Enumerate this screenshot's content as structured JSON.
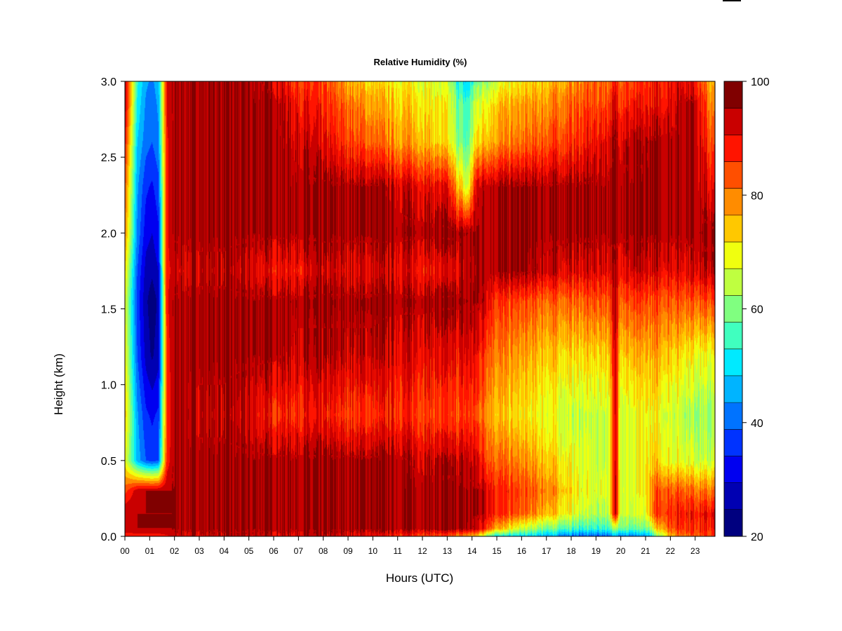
{
  "chart_data": {
    "type": "heatmap",
    "title": "Relative Humidity (%)",
    "xlabel": "Hours (UTC)",
    "ylabel": "Height (km)",
    "x_ticks": [
      "00",
      "01",
      "02",
      "03",
      "04",
      "05",
      "06",
      "07",
      "08",
      "09",
      "10",
      "11",
      "12",
      "13",
      "14",
      "15",
      "16",
      "17",
      "18",
      "19",
      "20",
      "21",
      "22",
      "23"
    ],
    "y_ticks": [
      "0.0",
      "0.5",
      "1.0",
      "1.5",
      "2.0",
      "2.5",
      "3.0"
    ],
    "xlim": [
      0,
      23.8
    ],
    "ylim": [
      0,
      3.0
    ],
    "colorbar": {
      "min": 20,
      "max": 100,
      "step": 5,
      "tick_labels": [
        "20",
        "40",
        "60",
        "80",
        "100"
      ],
      "colors": [
        "#00007f",
        "#0000b2",
        "#0000f0",
        "#0033ff",
        "#0073ff",
        "#00b4ff",
        "#00eaff",
        "#40ffbf",
        "#80ff80",
        "#bfff40",
        "#f0ff0f",
        "#ffc800",
        "#ff8c00",
        "#ff4f00",
        "#ff1400",
        "#c90000"
      ],
      "top_color": "#800000"
    },
    "x_values_hours": [
      0,
      0.5,
      0.85,
      1.1,
      1.35,
      1.7,
      2,
      3,
      4,
      5,
      6,
      7,
      8,
      9,
      10,
      11,
      12,
      13,
      13.5,
      13.8,
      14.2,
      14.6,
      15,
      16,
      17,
      18,
      18.5,
      19,
      19.5,
      19.8,
      20,
      20.5,
      21,
      21.2,
      21.5,
      22,
      22.5,
      23,
      23.5,
      23.8
    ],
    "y_values_km": [
      0.0,
      0.05,
      0.15,
      0.3,
      0.5,
      0.8,
      1.2,
      1.55,
      1.75,
      2.0,
      2.3,
      2.6,
      2.85,
      3.0
    ],
    "rh_rows": [
      [
        92,
        92,
        92,
        92,
        92,
        94,
        96,
        97,
        98,
        98,
        97,
        97,
        97,
        96,
        94,
        92,
        90,
        86,
        82,
        80,
        76,
        64,
        52,
        50,
        48,
        42,
        40,
        40,
        42,
        46,
        46,
        42,
        44,
        50,
        62,
        80,
        86,
        88,
        88,
        88
      ],
      [
        98,
        100,
        100,
        100,
        100,
        100,
        100,
        100,
        100,
        100,
        100,
        100,
        100,
        100,
        100,
        100,
        100,
        100,
        100,
        100,
        98,
        92,
        80,
        68,
        62,
        58,
        56,
        56,
        58,
        64,
        64,
        58,
        60,
        66,
        78,
        88,
        92,
        92,
        92,
        92
      ],
      [
        100,
        100,
        100,
        100,
        100,
        100,
        100,
        100,
        100,
        100,
        100,
        100,
        100,
        100,
        100,
        100,
        100,
        100,
        100,
        100,
        100,
        98,
        92,
        86,
        80,
        72,
        68,
        66,
        68,
        98,
        70,
        68,
        70,
        82,
        90,
        92,
        94,
        94,
        94,
        94
      ],
      [
        88,
        98,
        100,
        100,
        100,
        100,
        100,
        100,
        100,
        100,
        100,
        100,
        100,
        100,
        100,
        100,
        100,
        100,
        100,
        100,
        100,
        98,
        92,
        88,
        84,
        76,
        72,
        70,
        72,
        98,
        72,
        70,
        72,
        82,
        88,
        88,
        88,
        86,
        84,
        84
      ],
      [
        72,
        48,
        40,
        38,
        40,
        92,
        100,
        100,
        100,
        100,
        100,
        100,
        100,
        100,
        100,
        100,
        98,
        98,
        98,
        98,
        96,
        90,
        86,
        82,
        78,
        72,
        70,
        68,
        70,
        96,
        70,
        70,
        72,
        76,
        76,
        72,
        72,
        70,
        68,
        68
      ],
      [
        78,
        46,
        36,
        34,
        36,
        90,
        100,
        98,
        98,
        96,
        92,
        92,
        92,
        90,
        90,
        92,
        90,
        88,
        88,
        90,
        88,
        84,
        78,
        74,
        72,
        68,
        68,
        68,
        70,
        96,
        70,
        70,
        72,
        74,
        72,
        70,
        68,
        66,
        64,
        64
      ],
      [
        74,
        40,
        28,
        24,
        28,
        92,
        100,
        100,
        100,
        100,
        100,
        98,
        98,
        98,
        98,
        96,
        96,
        94,
        94,
        96,
        94,
        90,
        84,
        80,
        78,
        76,
        76,
        76,
        78,
        96,
        78,
        78,
        78,
        80,
        80,
        78,
        76,
        74,
        72,
        72
      ],
      [
        72,
        38,
        26,
        22,
        26,
        94,
        100,
        100,
        100,
        100,
        100,
        100,
        100,
        100,
        100,
        100,
        100,
        100,
        100,
        100,
        100,
        98,
        90,
        88,
        86,
        86,
        86,
        88,
        88,
        98,
        88,
        88,
        88,
        88,
        88,
        88,
        88,
        88,
        88,
        88
      ],
      [
        76,
        40,
        28,
        26,
        30,
        94,
        96,
        98,
        98,
        96,
        94,
        94,
        96,
        96,
        96,
        96,
        94,
        94,
        96,
        98,
        100,
        100,
        100,
        100,
        98,
        96,
        96,
        96,
        96,
        98,
        96,
        96,
        96,
        96,
        96,
        96,
        96,
        98,
        98,
        98
      ],
      [
        84,
        44,
        32,
        30,
        34,
        94,
        100,
        100,
        100,
        100,
        100,
        100,
        100,
        100,
        100,
        100,
        100,
        100,
        100,
        100,
        100,
        100,
        100,
        100,
        100,
        100,
        100,
        100,
        100,
        100,
        100,
        100,
        100,
        100,
        100,
        100,
        100,
        100,
        100,
        100
      ],
      [
        88,
        46,
        36,
        34,
        38,
        94,
        100,
        100,
        100,
        100,
        100,
        100,
        100,
        100,
        100,
        98,
        96,
        94,
        78,
        68,
        98,
        100,
        100,
        100,
        100,
        100,
        100,
        100,
        100,
        100,
        100,
        100,
        100,
        100,
        100,
        100,
        100,
        100,
        96,
        92
      ],
      [
        94,
        50,
        42,
        40,
        44,
        94,
        100,
        100,
        100,
        100,
        100,
        98,
        94,
        90,
        86,
        82,
        80,
        74,
        62,
        58,
        76,
        80,
        82,
        84,
        88,
        90,
        92,
        94,
        96,
        100,
        98,
        98,
        98,
        100,
        100,
        100,
        100,
        100,
        90,
        86
      ],
      [
        100,
        54,
        44,
        42,
        46,
        96,
        100,
        100,
        100,
        100,
        100,
        94,
        90,
        86,
        80,
        78,
        76,
        72,
        60,
        56,
        70,
        74,
        78,
        80,
        82,
        86,
        88,
        88,
        90,
        96,
        92,
        92,
        92,
        94,
        94,
        96,
        100,
        100,
        86,
        80
      ],
      [
        100,
        56,
        46,
        44,
        48,
        96,
        100,
        100,
        100,
        100,
        98,
        90,
        88,
        80,
        76,
        74,
        72,
        68,
        54,
        50,
        62,
        66,
        70,
        74,
        78,
        82,
        84,
        86,
        86,
        92,
        88,
        88,
        90,
        92,
        92,
        94,
        96,
        94,
        82,
        76
      ]
    ]
  }
}
